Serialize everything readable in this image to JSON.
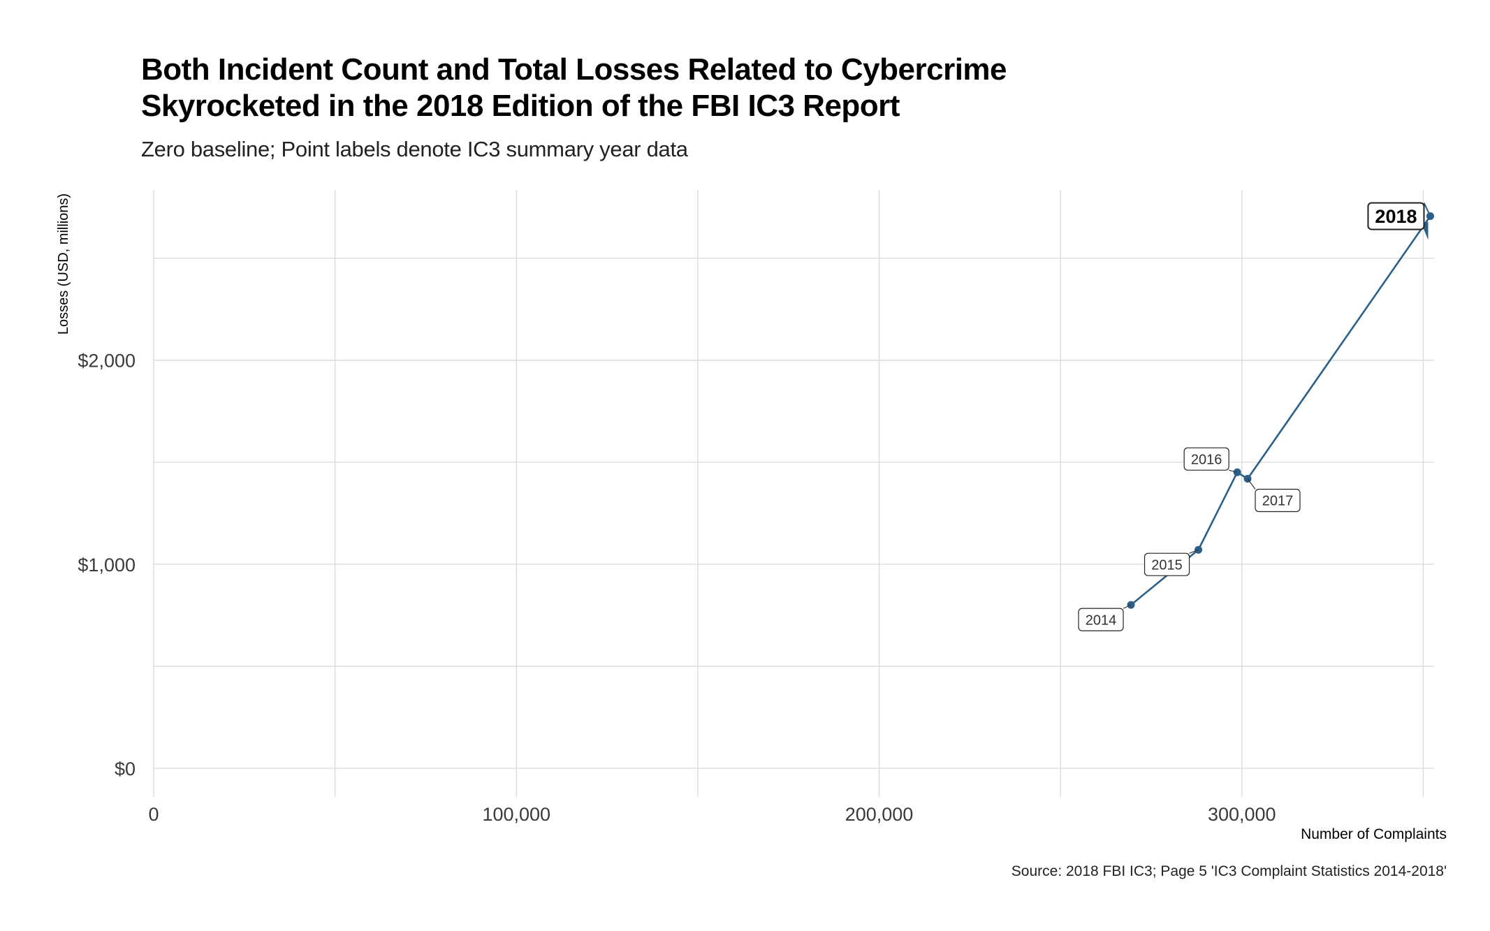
{
  "title_lines": [
    "Both Incident Count and Total Losses Related to Cybercrime",
    "Skyrocketed in the 2018 Edition of the FBI IC3 Report"
  ],
  "subtitle": "Zero baseline; Point labels denote IC3 summary year data",
  "caption": "Source: 2018 FBI IC3; Page 5 'IC3 Complaint Statistics 2014-2018'",
  "colors": {
    "series": "#2a5f8a",
    "grid": "#d9d9d9",
    "text": "#3a3a3a"
  },
  "chart_data": {
    "type": "line",
    "xlabel": "Number of Complaints",
    "ylabel": "Losses (USD, millions)",
    "xlim": [
      0,
      352000
    ],
    "ylim": [
      0,
      2830
    ],
    "x_ticks": [
      0,
      100000,
      200000,
      300000
    ],
    "x_tick_labels": [
      "0",
      "100,000",
      "200,000",
      "300,000"
    ],
    "y_ticks": [
      0,
      1000,
      2000
    ],
    "y_tick_labels": [
      "$0",
      "$1,000",
      "$2,000"
    ],
    "grid": true,
    "points": [
      {
        "label": "2014",
        "x": 269422,
        "y": 800.5
      },
      {
        "label": "2015",
        "x": 288012,
        "y": 1070.7
      },
      {
        "label": "2016",
        "x": 298728,
        "y": 1450.7
      },
      {
        "label": "2017",
        "x": 301580,
        "y": 1418.7
      },
      {
        "label": "2018",
        "x": 351937,
        "y": 2706.0,
        "highlight": true
      }
    ]
  }
}
